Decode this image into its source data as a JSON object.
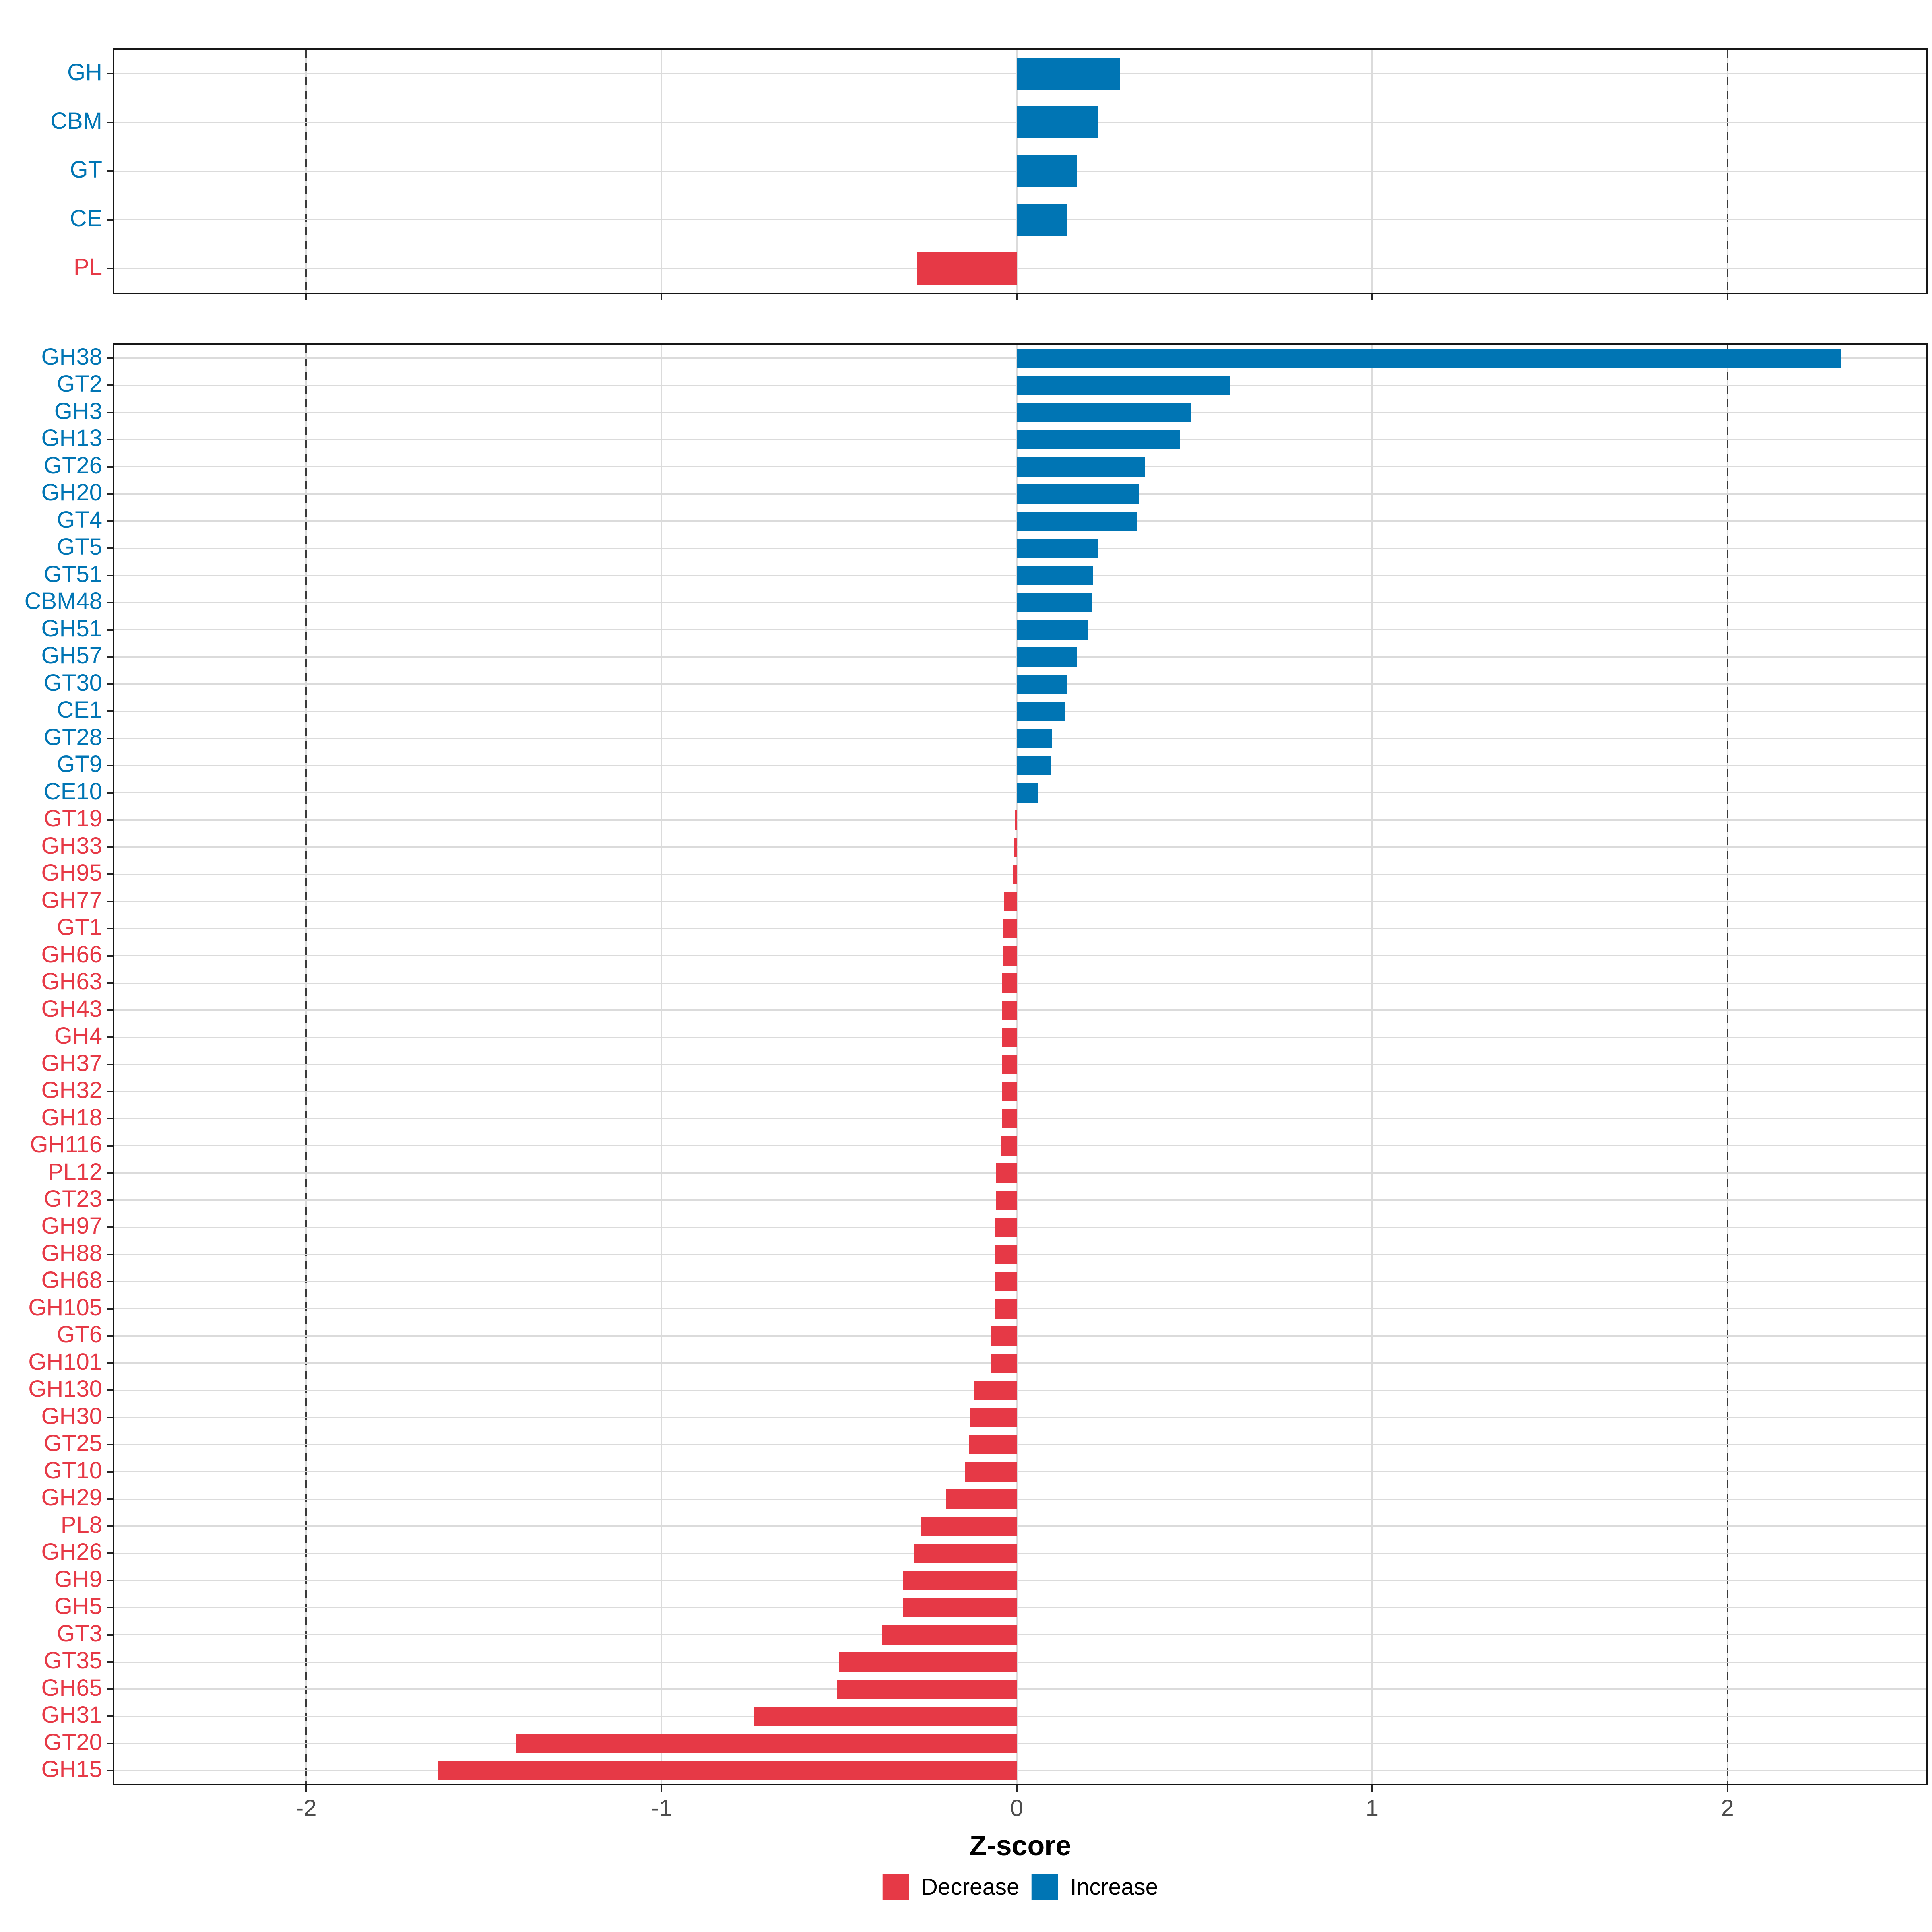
{
  "axis": {
    "xlabel": "Z-score",
    "ticks": [
      "-2",
      "-1",
      "0",
      "1",
      "2"
    ],
    "tick_values": [
      -2,
      -1,
      0,
      1,
      2
    ],
    "xmin": -2.54,
    "xmax": 2.56,
    "dashed_lines_at": [
      -2,
      2
    ]
  },
  "legend": {
    "items": [
      {
        "label": "Decrease",
        "color": "#E63946"
      },
      {
        "label": "Increase",
        "color": "#0075B4"
      }
    ]
  },
  "colors": {
    "increase": "#0075B4",
    "decrease": "#E63946",
    "grid": "#DBDBDB",
    "dashed_line": "#3A3A3A",
    "tick_label": "#4D4D4D",
    "panel_border": "#161616",
    "background": "#FFFFFF"
  },
  "chart_data": [
    {
      "type": "bar",
      "orientation": "horizontal",
      "panel": "cazy-classes",
      "title": "",
      "xlabel": "Z-score",
      "xlim": [
        -2.54,
        2.56
      ],
      "grid": true,
      "legend_position": "bottom",
      "categories": [
        "GH",
        "CBM",
        "GT",
        "CE",
        "PL"
      ],
      "values": [
        0.29,
        0.23,
        0.17,
        0.14,
        -0.28
      ]
    },
    {
      "type": "bar",
      "orientation": "horizontal",
      "panel": "cazy-families",
      "title": "",
      "xlabel": "Z-score",
      "xlim": [
        -2.54,
        2.56
      ],
      "grid": true,
      "legend_position": "bottom",
      "categories": [
        "GH38",
        "GT2",
        "GH3",
        "GH13",
        "GT26",
        "GH20",
        "GT4",
        "GT5",
        "GT51",
        "CBM48",
        "GH51",
        "GH57",
        "GT30",
        "CE1",
        "GT28",
        "GT9",
        "CE10",
        "GT19",
        "GH33",
        "GH95",
        "GH77",
        "GT1",
        "GH66",
        "GH63",
        "GH43",
        "GH4",
        "GH37",
        "GH32",
        "GH18",
        "GH116",
        "PL12",
        "GT23",
        "GH97",
        "GH88",
        "GH68",
        "GH105",
        "GT6",
        "GH101",
        "GH130",
        "GH30",
        "GT25",
        "GT10",
        "GH29",
        "PL8",
        "GH26",
        "GH9",
        "GH5",
        "GT3",
        "GT35",
        "GH65",
        "GH31",
        "GT20",
        "GH15"
      ],
      "values": [
        2.32,
        0.6,
        0.49,
        0.46,
        0.36,
        0.345,
        0.34,
        0.23,
        0.215,
        0.21,
        0.2,
        0.17,
        0.14,
        0.135,
        0.1,
        0.095,
        0.06,
        -0.005,
        -0.008,
        -0.012,
        -0.035,
        -0.04,
        -0.04,
        -0.041,
        -0.041,
        -0.041,
        -0.042,
        -0.042,
        -0.042,
        -0.043,
        -0.058,
        -0.059,
        -0.06,
        -0.061,
        -0.062,
        -0.062,
        -0.073,
        -0.074,
        -0.12,
        -0.13,
        -0.135,
        -0.145,
        -0.2,
        -0.27,
        -0.29,
        -0.32,
        -0.32,
        -0.38,
        -0.5,
        -0.505,
        -0.74,
        -1.41,
        -1.63
      ]
    }
  ]
}
